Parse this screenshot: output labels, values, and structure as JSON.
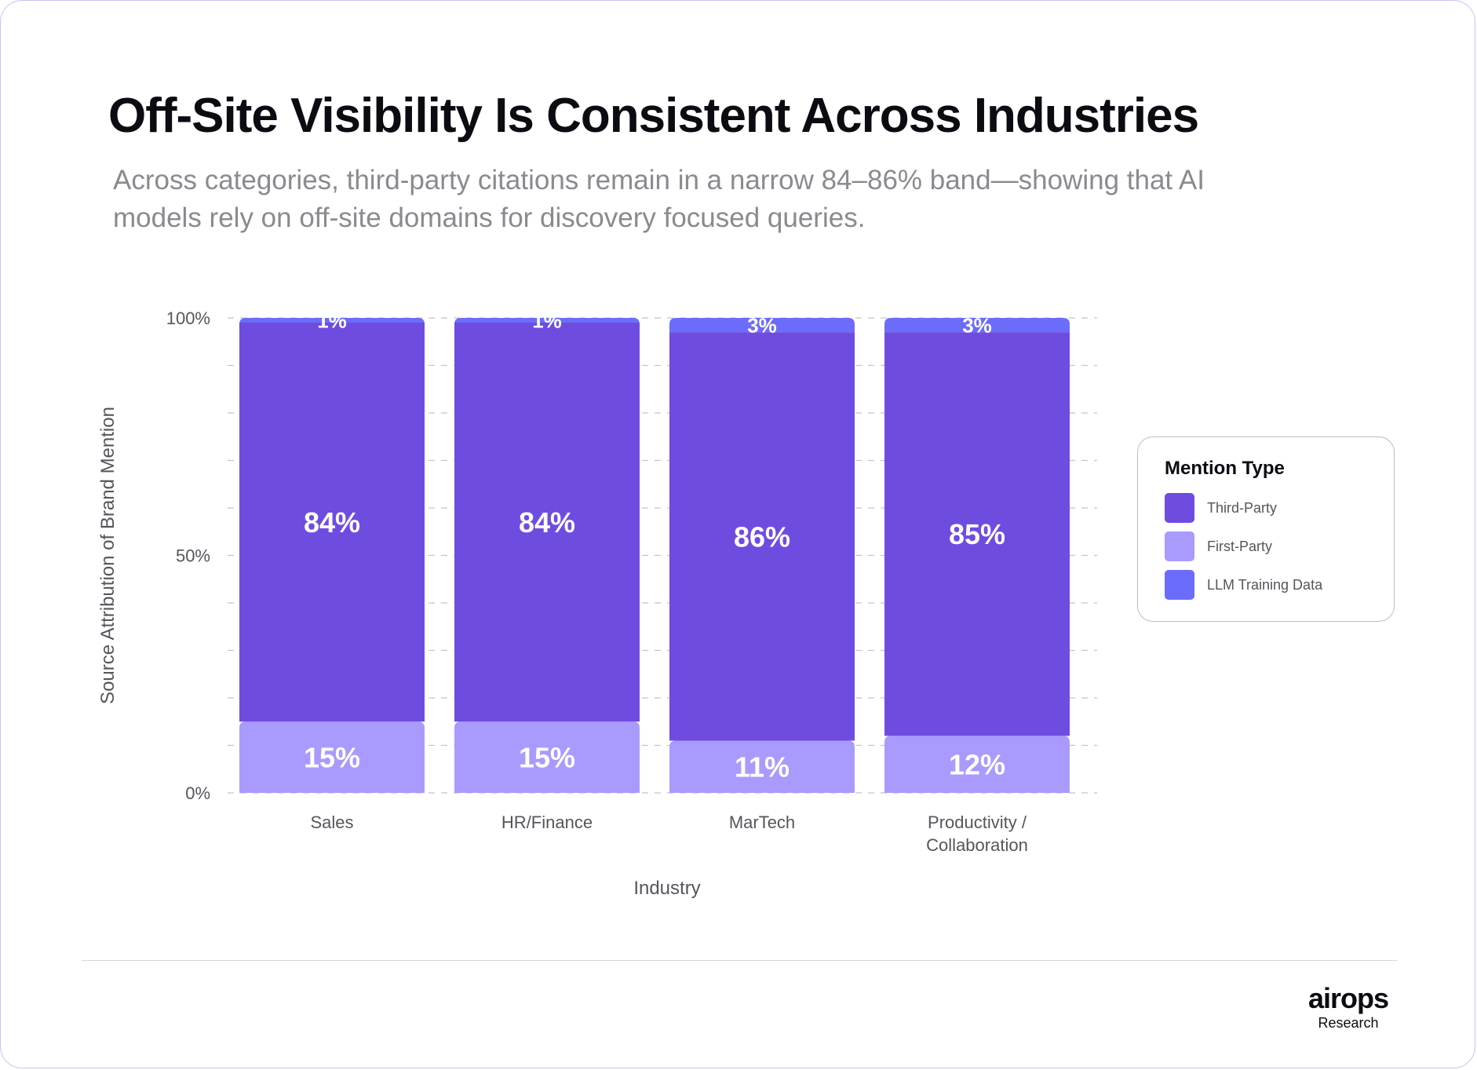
{
  "title": "Off-Site Visibility Is Consistent Across Industries",
  "subtitle": "Across categories, third-party citations remain in a narrow 84–86% band—showing that AI models rely on off-site domains for discovery focused queries.",
  "colors": {
    "third_party": "#6f4ce0",
    "first_party": "#a99bfd",
    "llm_training": "#6c6cfb",
    "grid": "#c4c4ca",
    "axis_text": "#55555c"
  },
  "chart_data": {
    "type": "bar",
    "stacked": true,
    "title": "",
    "xlabel": "Industry",
    "ylabel": "Source Attribution of Brand Mention",
    "ylim": [
      0,
      100
    ],
    "yticks": [
      {
        "value": 0,
        "label": "0%"
      },
      {
        "value": 50,
        "label": "50%"
      },
      {
        "value": 100,
        "label": "100%"
      }
    ],
    "categories": [
      {
        "label_lines": [
          "Sales"
        ]
      },
      {
        "label_lines": [
          "HR/Finance"
        ]
      },
      {
        "label_lines": [
          "MarTech"
        ]
      },
      {
        "label_lines": [
          "Productivity /",
          "Collaboration"
        ]
      }
    ],
    "series": [
      {
        "name": "First-Party",
        "key": "first_party",
        "values": [
          15,
          15,
          11,
          12
        ],
        "labels": [
          "15%",
          "15%",
          "11%",
          "12%"
        ]
      },
      {
        "name": "Third-Party",
        "key": "third_party",
        "values": [
          84,
          84,
          86,
          85
        ],
        "labels": [
          "84%",
          "84%",
          "86%",
          "85%"
        ]
      },
      {
        "name": "LLM Training Data",
        "key": "llm_training",
        "values": [
          1,
          1,
          3,
          3
        ],
        "labels": [
          "1%",
          "1%",
          "3%",
          "3%"
        ]
      }
    ],
    "legend": {
      "title": "Mention Type",
      "position": "right",
      "items": [
        {
          "name": "Third-Party",
          "key": "third_party"
        },
        {
          "name": "First-Party",
          "key": "first_party"
        },
        {
          "name": "LLM Training Data",
          "key": "llm_training"
        }
      ]
    }
  },
  "brand": {
    "logo_text": "airops",
    "sub_text": "Research"
  }
}
